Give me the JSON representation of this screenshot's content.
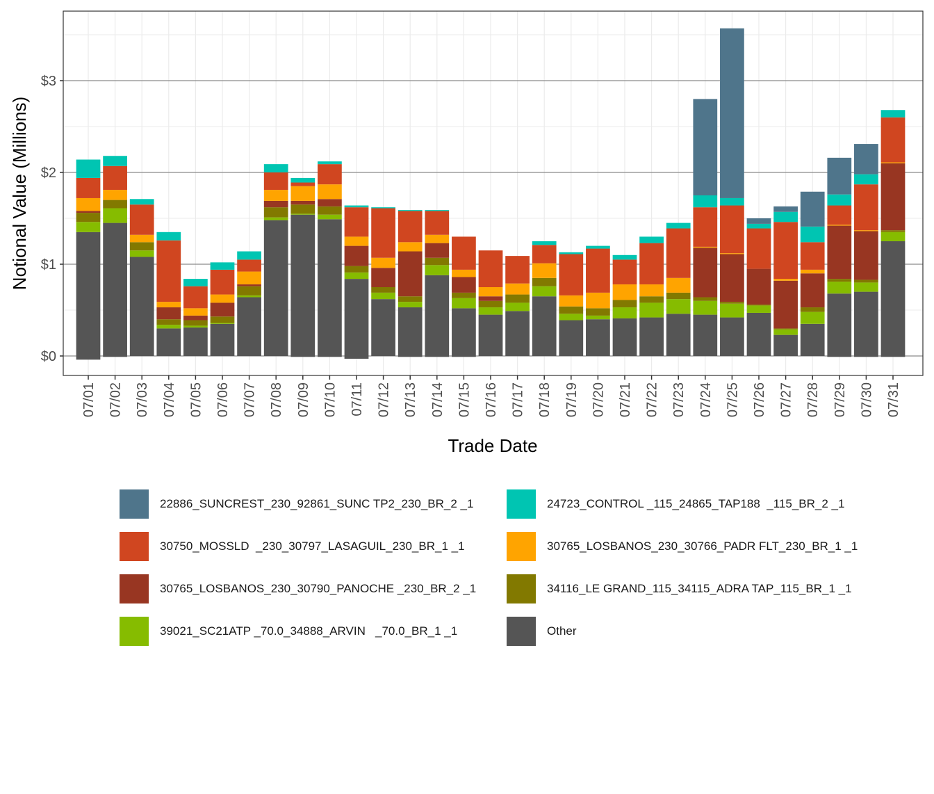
{
  "chart_data": {
    "type": "bar",
    "stacked": true,
    "title": "",
    "xlabel": "Trade Date",
    "ylabel": "Notional Value (Millions)",
    "ylim": [
      -0.2,
      3.75
    ],
    "yticks": [
      0,
      1,
      2,
      3
    ],
    "ytick_labels": [
      "$0",
      "$1",
      "$2",
      "$3"
    ],
    "grid": true,
    "legend_position": "bottom",
    "categories": [
      "07/01",
      "07/02",
      "07/03",
      "07/04",
      "07/05",
      "07/06",
      "07/07",
      "07/08",
      "07/09",
      "07/10",
      "07/11",
      "07/12",
      "07/13",
      "07/14",
      "07/15",
      "07/16",
      "07/17",
      "07/18",
      "07/19",
      "07/20",
      "07/21",
      "07/22",
      "07/23",
      "07/24",
      "07/25",
      "07/26",
      "07/27",
      "07/28",
      "07/29",
      "07/30",
      "07/31"
    ],
    "series": [
      {
        "name": "Other",
        "color": "#555555",
        "values": [
          1.35,
          1.45,
          1.08,
          0.3,
          0.31,
          0.35,
          0.64,
          1.48,
          1.54,
          1.49,
          0.84,
          0.62,
          0.53,
          0.88,
          0.52,
          0.45,
          0.49,
          0.65,
          0.39,
          0.4,
          0.41,
          0.42,
          0.46,
          0.45,
          0.42,
          0.47,
          0.23,
          0.35,
          0.68,
          0.7,
          1.25
        ]
      },
      {
        "name": "39021_SC21ATP _70.0_34888_ARVIN   _70.0_BR_1 _1",
        "color": "#86BC00",
        "values": [
          0.11,
          0.16,
          0.07,
          0.04,
          0.02,
          0.01,
          0.02,
          0.03,
          0.01,
          0.05,
          0.07,
          0.07,
          0.06,
          0.11,
          0.11,
          0.08,
          0.09,
          0.11,
          0.07,
          0.04,
          0.12,
          0.16,
          0.16,
          0.15,
          0.15,
          0.08,
          0.06,
          0.13,
          0.13,
          0.1,
          0.1
        ]
      },
      {
        "name": "34116_LE GRAND_115_34115_ADRA TAP_115_BR_1 _1",
        "color": "#827900",
        "values": [
          0.1,
          0.09,
          0.09,
          0.06,
          0.06,
          0.07,
          0.1,
          0.11,
          0.1,
          0.09,
          0.07,
          0.06,
          0.06,
          0.08,
          0.06,
          0.07,
          0.09,
          0.09,
          0.08,
          0.08,
          0.08,
          0.07,
          0.07,
          0.04,
          0.02,
          0.01,
          0.01,
          0.05,
          0.03,
          0.03,
          0.02
        ]
      },
      {
        "name": "30765_LOSBANOS_230_30790_PANOCHE _230_BR_2 _1",
        "color": "#983622",
        "values": [
          0.02,
          0.0,
          0.0,
          0.13,
          0.05,
          0.15,
          0.02,
          0.07,
          0.04,
          0.08,
          0.22,
          0.21,
          0.49,
          0.16,
          0.17,
          0.05,
          0.0,
          0.0,
          0.0,
          0.0,
          0.0,
          0.0,
          0.0,
          0.54,
          0.52,
          0.39,
          0.52,
          0.37,
          0.58,
          0.53,
          0.73
        ]
      },
      {
        "name": "30765_LOSBANOS_230_30766_PADR FLT_230_BR_1 _1",
        "color": "#FFA400",
        "values": [
          0.14,
          0.11,
          0.08,
          0.06,
          0.08,
          0.09,
          0.14,
          0.12,
          0.16,
          0.16,
          0.1,
          0.11,
          0.1,
          0.09,
          0.08,
          0.1,
          0.12,
          0.16,
          0.12,
          0.17,
          0.17,
          0.13,
          0.16,
          0.01,
          0.01,
          0.0,
          0.02,
          0.04,
          0.01,
          0.01,
          0.01
        ]
      },
      {
        "name": "30750_MOSSLD  _230_30797_LASAGUIL_230_BR_1 _1",
        "color": "#D04620",
        "values": [
          0.22,
          0.26,
          0.33,
          0.67,
          0.24,
          0.27,
          0.13,
          0.19,
          0.04,
          0.22,
          0.32,
          0.54,
          0.34,
          0.26,
          0.36,
          0.4,
          0.3,
          0.2,
          0.45,
          0.48,
          0.27,
          0.45,
          0.54,
          0.43,
          0.52,
          0.44,
          0.62,
          0.3,
          0.21,
          0.5,
          0.49
        ]
      },
      {
        "name": "24723_CONTROL _115_24865_TAP188  _115_BR_2 _1",
        "color": "#00C5B2",
        "values": [
          0.2,
          0.11,
          0.06,
          0.09,
          0.08,
          0.08,
          0.09,
          0.09,
          0.05,
          0.03,
          0.02,
          0.01,
          0.01,
          0.01,
          0.0,
          0.0,
          0.0,
          0.04,
          0.02,
          0.03,
          0.05,
          0.07,
          0.06,
          0.13,
          0.08,
          0.05,
          0.11,
          0.17,
          0.12,
          0.11,
          0.08
        ]
      },
      {
        "name": "22886_SUNCREST_230_92861_SUNC TP2_230_BR_2 _1",
        "color": "#4F758B",
        "values": [
          0,
          0,
          0,
          0,
          0,
          0,
          0,
          0,
          0,
          0,
          0,
          0,
          0,
          0,
          0,
          0,
          0,
          0,
          0,
          0,
          0,
          0,
          0,
          1.05,
          1.85,
          0.06,
          0.06,
          0.38,
          0.4,
          0.33,
          0.0
        ]
      }
    ],
    "negative_series": [
      {
        "name": "Other",
        "color": "#555555",
        "values": [
          -0.04,
          -0.01,
          0.0,
          0.0,
          0.0,
          0.0,
          0.0,
          0.0,
          -0.01,
          -0.01,
          -0.03,
          0.0,
          -0.01,
          -0.01,
          -0.01,
          0.0,
          0.0,
          0.0,
          0.0,
          0.0,
          0.0,
          0.0,
          0.0,
          0.0,
          0.0,
          0.0,
          0.0,
          0.0,
          -0.01,
          -0.01,
          -0.01
        ]
      }
    ]
  },
  "legend": {
    "items": [
      {
        "label": "22886_SUNCREST_230_92861_SUNC TP2_230_BR_2 _1",
        "color": "#4F758B"
      },
      {
        "label": "24723_CONTROL _115_24865_TAP188  _115_BR_2 _1",
        "color": "#00C5B2"
      },
      {
        "label": "30750_MOSSLD  _230_30797_LASAGUIL_230_BR_1 _1",
        "color": "#D04620"
      },
      {
        "label": "30765_LOSBANOS_230_30766_PADR FLT_230_BR_1 _1",
        "color": "#FFA400"
      },
      {
        "label": "30765_LOSBANOS_230_30790_PANOCHE _230_BR_2 _1",
        "color": "#983622"
      },
      {
        "label": "34116_LE GRAND_115_34115_ADRA TAP_115_BR_1 _1",
        "color": "#827900"
      },
      {
        "label": "39021_SC21ATP _70.0_34888_ARVIN   _70.0_BR_1 _1",
        "color": "#86BC00"
      },
      {
        "label": "Other",
        "color": "#555555"
      }
    ]
  }
}
